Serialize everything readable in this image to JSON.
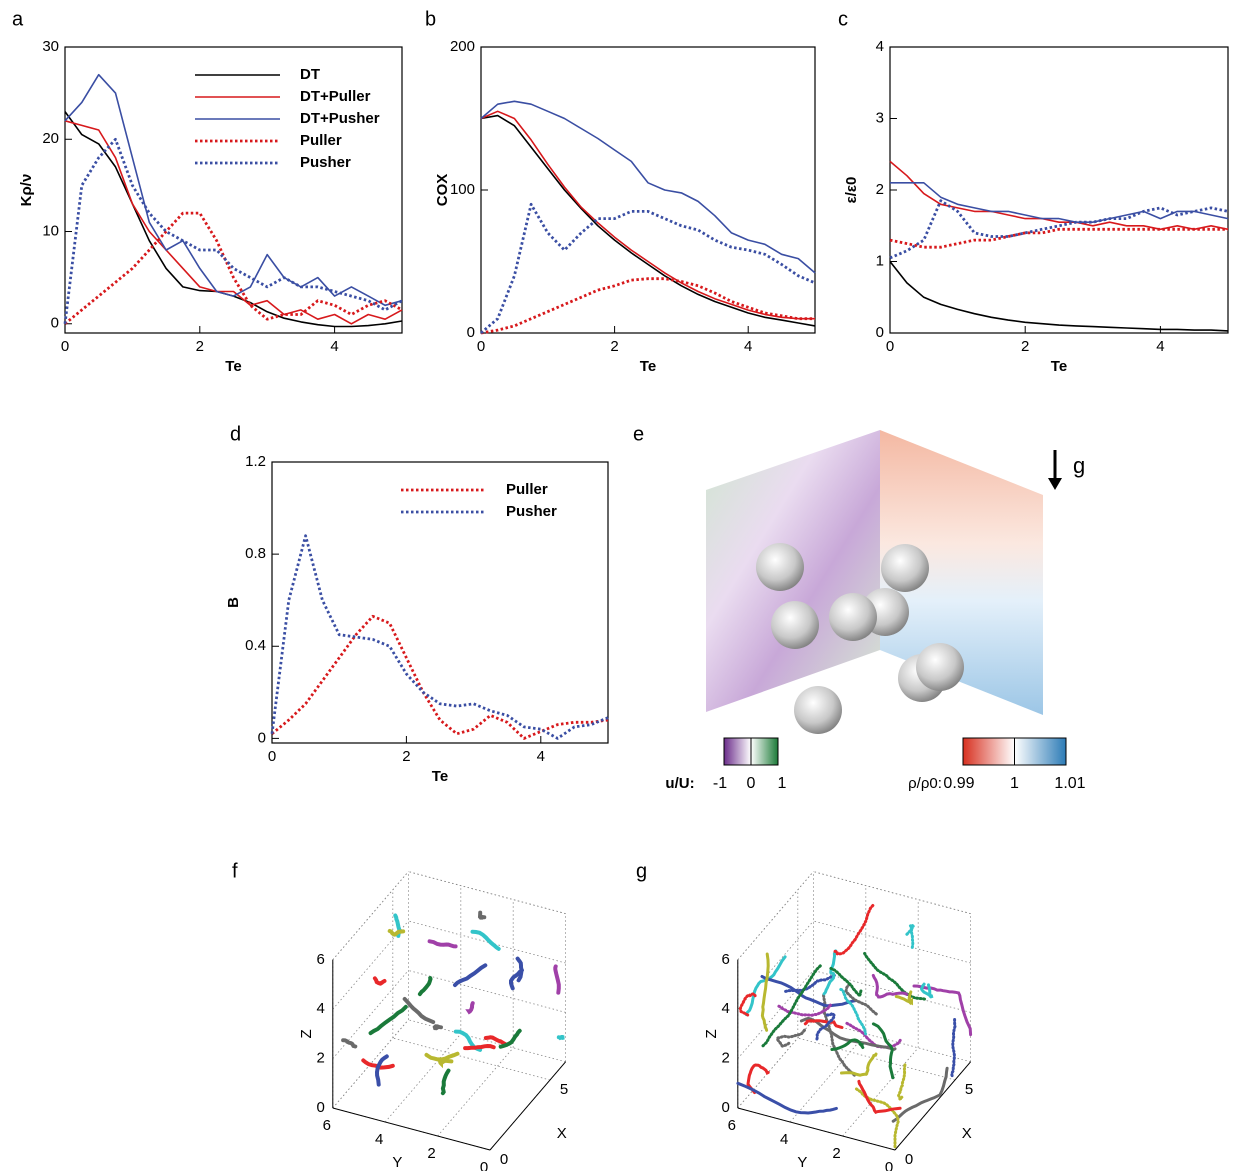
{
  "chart_data": [
    {
      "type": "line",
      "label": "a",
      "xlabel": "Te",
      "ylabel": "Kρ/ν",
      "x": [
        0,
        0.25,
        0.5,
        0.75,
        1,
        1.25,
        1.5,
        1.75,
        2,
        2.25,
        2.5,
        2.75,
        3,
        3.25,
        3.5,
        3.75,
        4,
        4.25,
        4.5,
        4.75,
        5
      ],
      "xlim": [
        0,
        5
      ],
      "xticks": [
        0,
        2,
        4
      ],
      "ylim": [
        -1,
        30
      ],
      "yticks": [
        0,
        10,
        20,
        30
      ],
      "legend": "upper right",
      "series": [
        {
          "name": "DT",
          "color": "#000000",
          "dash": "solid",
          "values": [
            23,
            20.5,
            19.5,
            17,
            13,
            9,
            6,
            4,
            3.6,
            3.5,
            3,
            2.3,
            1.3,
            0.6,
            0.2,
            -0.1,
            -0.3,
            -0.3,
            -0.2,
            0,
            0.3
          ]
        },
        {
          "name": "DT+Puller",
          "color": "#d7191c",
          "dash": "solid",
          "values": [
            22,
            21.5,
            21,
            18,
            13,
            10,
            8,
            6,
            4,
            3.5,
            3.5,
            2,
            2.5,
            1,
            1.5,
            0.5,
            1,
            0,
            1,
            0.5,
            1.5
          ]
        },
        {
          "name": "DT+Pusher",
          "color": "#3a4ea3",
          "dash": "solid",
          "values": [
            22,
            24,
            27,
            25,
            18,
            11,
            8,
            9,
            6,
            3.5,
            3,
            4,
            7.5,
            5,
            4,
            5,
            3,
            4,
            3,
            2,
            2.5
          ]
        },
        {
          "name": "Puller",
          "color": "#d7191c",
          "dash": "dotted",
          "values": [
            0,
            1.5,
            3,
            4.5,
            6,
            8,
            10,
            12,
            12,
            9,
            5,
            2,
            0.5,
            1,
            1,
            2.5,
            2,
            1,
            2,
            2.5,
            1.5
          ]
        },
        {
          "name": "Pusher",
          "color": "#3a4ea3",
          "dash": "dotted",
          "values": [
            0,
            15,
            18,
            20,
            15,
            12,
            10,
            9,
            8,
            8,
            6,
            5,
            4,
            5,
            4,
            4,
            3.5,
            3,
            2.5,
            1.5,
            2.5
          ]
        }
      ]
    },
    {
      "type": "line",
      "label": "b",
      "xlabel": "Te",
      "ylabel": "COX",
      "x": [
        0,
        0.25,
        0.5,
        0.75,
        1,
        1.25,
        1.5,
        1.75,
        2,
        2.25,
        2.5,
        2.75,
        3,
        3.25,
        3.5,
        3.75,
        4,
        4.25,
        4.5,
        4.75,
        5
      ],
      "xlim": [
        0,
        5
      ],
      "xticks": [
        0,
        2,
        4
      ],
      "ylim": [
        0,
        200
      ],
      "yticks": [
        0,
        100,
        200
      ],
      "series": [
        {
          "color": "#000000",
          "dash": "solid",
          "values": [
            150,
            152,
            145,
            130,
            115,
            100,
            87,
            75,
            65,
            56,
            48,
            40,
            33,
            27,
            22,
            18,
            14,
            11,
            9,
            7,
            5
          ]
        },
        {
          "color": "#d7191c",
          "dash": "solid",
          "values": [
            150,
            155,
            150,
            135,
            118,
            102,
            88,
            77,
            67,
            58,
            50,
            42,
            35,
            29,
            24,
            20,
            16,
            13,
            11,
            10,
            10
          ]
        },
        {
          "color": "#3a4ea3",
          "dash": "solid",
          "values": [
            150,
            160,
            162,
            160,
            155,
            150,
            143,
            136,
            128,
            120,
            105,
            100,
            98,
            92,
            82,
            70,
            65,
            62,
            55,
            52,
            42
          ]
        },
        {
          "color": "#d7191c",
          "dash": "dotted",
          "values": [
            0,
            2,
            5,
            10,
            15,
            20,
            25,
            30,
            33,
            37,
            38,
            38,
            36,
            33,
            28,
            22,
            18,
            14,
            12,
            10,
            10
          ]
        },
        {
          "color": "#3a4ea3",
          "dash": "dotted",
          "values": [
            0,
            10,
            40,
            90,
            70,
            58,
            70,
            80,
            80,
            85,
            85,
            80,
            75,
            72,
            65,
            60,
            58,
            55,
            48,
            40,
            35
          ]
        }
      ]
    },
    {
      "type": "line",
      "label": "c",
      "xlabel": "Te",
      "ylabel": "ε/ε0",
      "x": [
        0,
        0.25,
        0.5,
        0.75,
        1,
        1.25,
        1.5,
        1.75,
        2,
        2.25,
        2.5,
        2.75,
        3,
        3.25,
        3.5,
        3.75,
        4,
        4.25,
        4.5,
        4.75,
        5
      ],
      "xlim": [
        0,
        5
      ],
      "xticks": [
        0,
        2,
        4
      ],
      "ylim": [
        0,
        4
      ],
      "yticks": [
        0,
        1,
        2,
        3,
        4
      ],
      "series": [
        {
          "color": "#000000",
          "dash": "solid",
          "values": [
            1,
            0.7,
            0.5,
            0.4,
            0.33,
            0.27,
            0.22,
            0.18,
            0.15,
            0.13,
            0.11,
            0.1,
            0.09,
            0.08,
            0.07,
            0.06,
            0.05,
            0.05,
            0.04,
            0.04,
            0.03
          ]
        },
        {
          "color": "#d7191c",
          "dash": "solid",
          "values": [
            2.4,
            2.2,
            1.95,
            1.8,
            1.75,
            1.7,
            1.7,
            1.65,
            1.6,
            1.6,
            1.55,
            1.55,
            1.5,
            1.55,
            1.5,
            1.5,
            1.45,
            1.5,
            1.45,
            1.5,
            1.45
          ]
        },
        {
          "color": "#3a4ea3",
          "dash": "solid",
          "values": [
            2.1,
            2.1,
            2.1,
            1.9,
            1.8,
            1.75,
            1.7,
            1.7,
            1.65,
            1.6,
            1.6,
            1.55,
            1.55,
            1.6,
            1.65,
            1.7,
            1.6,
            1.7,
            1.7,
            1.65,
            1.6
          ]
        },
        {
          "color": "#d7191c",
          "dash": "dotted",
          "values": [
            1.3,
            1.25,
            1.2,
            1.2,
            1.25,
            1.3,
            1.3,
            1.35,
            1.4,
            1.4,
            1.45,
            1.45,
            1.45,
            1.45,
            1.45,
            1.45,
            1.45,
            1.45,
            1.45,
            1.45,
            1.45
          ]
        },
        {
          "color": "#3a4ea3",
          "dash": "dotted",
          "values": [
            1.05,
            1.15,
            1.3,
            1.85,
            1.7,
            1.4,
            1.35,
            1.35,
            1.4,
            1.45,
            1.5,
            1.55,
            1.55,
            1.6,
            1.6,
            1.7,
            1.75,
            1.65,
            1.7,
            1.75,
            1.7
          ]
        }
      ]
    },
    {
      "type": "line",
      "label": "d",
      "xlabel": "Te",
      "ylabel": "B",
      "x": [
        0,
        0.25,
        0.5,
        0.75,
        1,
        1.25,
        1.5,
        1.75,
        2,
        2.25,
        2.5,
        2.75,
        3,
        3.25,
        3.5,
        3.75,
        4,
        4.25,
        4.5,
        4.75,
        5
      ],
      "xlim": [
        0,
        5
      ],
      "xticks": [
        0,
        2,
        4
      ],
      "ylim": [
        -0.02,
        1.2
      ],
      "yticks": [
        0,
        0.4,
        0.8,
        1.2
      ],
      "legend": "upper right",
      "series": [
        {
          "name": "Puller",
          "color": "#d7191c",
          "dash": "dotted",
          "values": [
            0.02,
            0.08,
            0.15,
            0.25,
            0.35,
            0.45,
            0.53,
            0.5,
            0.35,
            0.2,
            0.08,
            0.02,
            0.04,
            0.1,
            0.07,
            0,
            0.03,
            0.06,
            0.07,
            0.07,
            0.08
          ]
        },
        {
          "name": "Pusher",
          "color": "#3a4ea3",
          "dash": "dotted",
          "values": [
            0.02,
            0.6,
            0.88,
            0.6,
            0.45,
            0.44,
            0.43,
            0.4,
            0.28,
            0.2,
            0.15,
            0.14,
            0.15,
            0.12,
            0.1,
            0.05,
            0.04,
            0,
            0.05,
            0.06,
            0.09
          ]
        }
      ]
    },
    {
      "type": "image",
      "label": "e",
      "annotation": "g",
      "colorbars": [
        {
          "label": "u/U:",
          "lim": [
            -1,
            1
          ],
          "ticks": [
            -1,
            0,
            1
          ]
        },
        {
          "label": "ρ/ρ0:",
          "lim": [
            0.99,
            1.01
          ],
          "ticks": [
            0.99,
            1,
            1.01
          ]
        }
      ]
    },
    {
      "type": "trajectory3d",
      "label": "f",
      "xlabel": "X",
      "ylabel": "Y",
      "zlabel": "Z",
      "xlim": [
        0,
        6.3
      ],
      "ylim": [
        0,
        6
      ],
      "zlim": [
        0,
        6
      ],
      "xticks": [
        0,
        5
      ],
      "yticks": [
        0,
        2,
        4,
        6
      ],
      "zticks": [
        0,
        2,
        4,
        6
      ]
    },
    {
      "type": "trajectory3d",
      "label": "g",
      "xlabel": "X",
      "ylabel": "Y",
      "zlabel": "Z",
      "xlim": [
        0,
        6.3
      ],
      "ylim": [
        0,
        6
      ],
      "zlim": [
        0,
        6
      ],
      "xticks": [
        0,
        5
      ],
      "yticks": [
        0,
        2,
        4,
        6
      ],
      "zticks": [
        0,
        2,
        4,
        6
      ]
    }
  ]
}
